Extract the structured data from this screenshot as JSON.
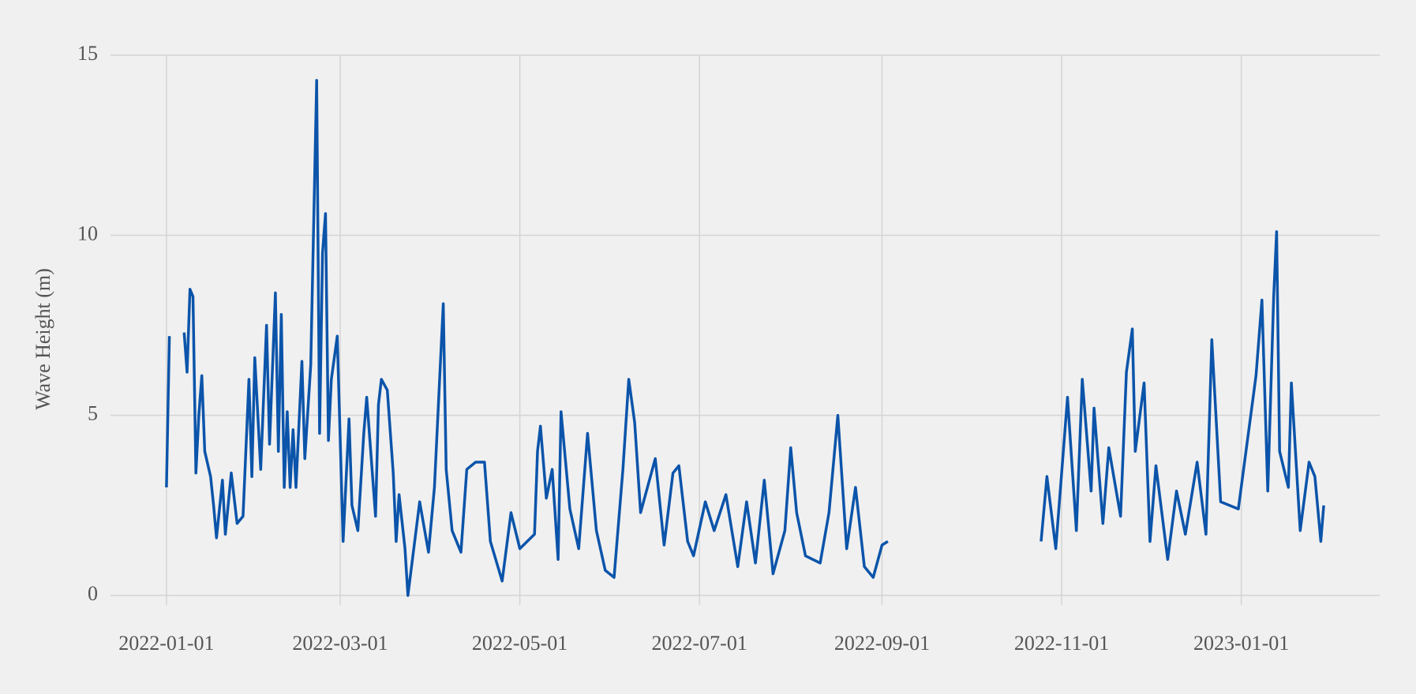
{
  "chart_data": {
    "type": "line",
    "ylabel": "Wave Height (m)",
    "x": [
      "2022-01-01",
      "2022-01-02",
      "2022-01-04",
      "2022-01-07",
      "2022-01-08",
      "2022-01-09",
      "2022-01-10",
      "2022-01-11",
      "2022-01-12",
      "2022-01-13",
      "2022-01-14",
      "2022-01-16",
      "2022-01-17",
      "2022-01-18",
      "2022-01-20",
      "2022-01-21",
      "2022-01-23",
      "2022-01-25",
      "2022-01-27",
      "2022-01-29",
      "2022-01-30",
      "2022-01-31",
      "2022-02-02",
      "2022-02-04",
      "2022-02-05",
      "2022-02-07",
      "2022-02-08",
      "2022-02-09",
      "2022-02-10",
      "2022-02-11",
      "2022-02-12",
      "2022-02-13",
      "2022-02-14",
      "2022-02-16",
      "2022-02-17",
      "2022-02-19",
      "2022-02-21",
      "2022-02-22",
      "2022-02-23",
      "2022-02-24",
      "2022-02-25",
      "2022-02-26",
      "2022-02-28",
      "2022-03-02",
      "2022-03-04",
      "2022-03-05",
      "2022-03-07",
      "2022-03-09",
      "2022-03-10",
      "2022-03-13",
      "2022-03-14",
      "2022-03-15",
      "2022-03-17",
      "2022-03-19",
      "2022-03-20",
      "2022-03-21",
      "2022-03-23",
      "2022-03-24",
      "2022-03-28",
      "2022-03-31",
      "2022-04-02",
      "2022-04-05",
      "2022-04-06",
      "2022-04-08",
      "2022-04-11",
      "2022-04-13",
      "2022-04-16",
      "2022-04-19",
      "2022-04-21",
      "2022-04-25",
      "2022-04-28",
      "2022-05-01",
      "2022-05-06",
      "2022-05-07",
      "2022-05-08",
      "2022-05-10",
      "2022-05-12",
      "2022-05-14",
      "2022-05-15",
      "2022-05-18",
      "2022-05-21",
      "2022-05-24",
      "2022-05-27",
      "2022-05-30",
      "2022-06-02",
      "2022-06-05",
      "2022-06-07",
      "2022-06-09",
      "2022-06-11",
      "2022-06-16",
      "2022-06-19",
      "2022-06-22",
      "2022-06-24",
      "2022-06-27",
      "2022-06-29",
      "2022-07-03",
      "2022-07-06",
      "2022-07-10",
      "2022-07-14",
      "2022-07-17",
      "2022-07-20",
      "2022-07-23",
      "2022-07-26",
      "2022-07-30",
      "2022-08-01",
      "2022-08-03",
      "2022-08-06",
      "2022-08-11",
      "2022-08-14",
      "2022-08-17",
      "2022-08-20",
      "2022-08-23",
      "2022-08-26",
      "2022-08-29",
      "2022-09-01",
      "2022-09-03",
      "2022-09-10",
      "2022-10-25",
      "2022-10-27",
      "2022-10-30",
      "2022-11-03",
      "2022-11-06",
      "2022-11-08",
      "2022-11-11",
      "2022-11-12",
      "2022-11-15",
      "2022-11-17",
      "2022-11-21",
      "2022-11-23",
      "2022-11-25",
      "2022-11-26",
      "2022-11-29",
      "2022-12-01",
      "2022-12-03",
      "2022-12-07",
      "2022-12-10",
      "2022-12-13",
      "2022-12-17",
      "2022-12-20",
      "2022-12-22",
      "2022-12-25",
      "2022-12-31",
      "2023-01-06",
      "2023-01-08",
      "2023-01-10",
      "2023-01-12",
      "2023-01-13",
      "2023-01-14",
      "2023-01-17",
      "2023-01-18",
      "2023-01-21",
      "2023-01-24",
      "2023-01-26",
      "2023-01-28",
      "2023-01-29"
    ],
    "series": [
      {
        "name": "Wave Height",
        "color": "#0b54aa",
        "values": [
          3.0,
          7.2,
          null,
          7.3,
          6.2,
          8.5,
          8.3,
          3.4,
          5.0,
          6.1,
          4.0,
          3.3,
          2.5,
          1.6,
          3.2,
          1.7,
          3.4,
          2.0,
          2.2,
          6.0,
          3.3,
          6.6,
          3.5,
          7.5,
          4.2,
          8.4,
          4.0,
          7.8,
          3.0,
          5.1,
          3.0,
          4.6,
          3.0,
          6.5,
          3.8,
          6.4,
          14.3,
          4.5,
          9.5,
          10.6,
          4.3,
          6.0,
          7.2,
          1.5,
          4.9,
          2.5,
          1.8,
          4.5,
          5.5,
          2.2,
          5.3,
          6.0,
          5.7,
          3.4,
          1.5,
          2.8,
          1.3,
          0.0,
          2.6,
          1.2,
          3.0,
          8.1,
          3.5,
          1.8,
          1.2,
          3.5,
          3.7,
          3.7,
          1.5,
          0.4,
          2.3,
          1.3,
          1.7,
          4.0,
          4.7,
          2.7,
          3.5,
          1.0,
          5.1,
          2.4,
          1.3,
          4.5,
          1.8,
          0.7,
          0.5,
          3.5,
          6.0,
          4.8,
          2.3,
          3.8,
          1.4,
          3.4,
          3.6,
          1.5,
          1.1,
          2.6,
          1.8,
          2.8,
          0.8,
          2.6,
          0.9,
          3.2,
          0.6,
          1.8,
          4.1,
          2.3,
          1.1,
          0.9,
          2.3,
          5.0,
          1.3,
          3.0,
          0.8,
          0.5,
          1.4,
          1.5,
          null,
          1.5,
          3.3,
          1.3,
          5.5,
          1.8,
          6.0,
          2.9,
          5.2,
          2.0,
          4.1,
          2.2,
          6.2,
          7.4,
          4.0,
          5.9,
          1.5,
          3.6,
          1.0,
          2.9,
          1.7,
          3.7,
          1.7,
          7.1,
          2.6,
          2.4,
          6.1,
          8.2,
          2.9,
          8.3,
          10.1,
          4.0,
          3.0,
          5.9,
          1.8,
          3.7,
          3.3,
          1.5,
          2.5
        ]
      }
    ],
    "xlim": [
      "2021-12-13",
      "2023-02-17"
    ],
    "xticks": [
      "2022-01-01",
      "2022-03-01",
      "2022-05-01",
      "2022-07-01",
      "2022-09-01",
      "2022-11-01",
      "2023-01-01"
    ],
    "ylim": [
      -0.7,
      15.7
    ],
    "yticks": [
      0,
      5,
      10,
      15
    ],
    "grid": true
  }
}
